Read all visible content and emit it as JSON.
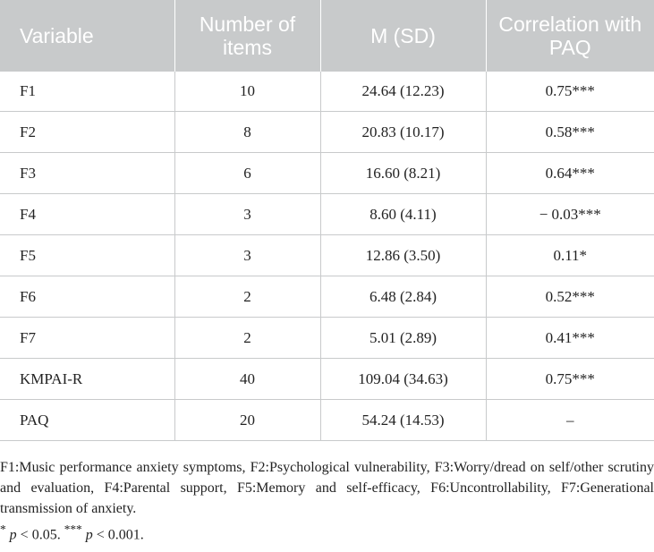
{
  "table": {
    "headers": [
      "Variable",
      "Number of items",
      "M (SD)",
      "Correlation with PAQ"
    ],
    "rows": [
      {
        "variable": "F1",
        "items": "10",
        "msd": "24.64 (12.23)",
        "corr": "0.75***"
      },
      {
        "variable": "F2",
        "items": "8",
        "msd": "20.83 (10.17)",
        "corr": "0.58***"
      },
      {
        "variable": "F3",
        "items": "6",
        "msd": "16.60 (8.21)",
        "corr": "0.64***"
      },
      {
        "variable": "F4",
        "items": "3",
        "msd": "8.60 (4.11)",
        "corr": "− 0.03***"
      },
      {
        "variable": "F5",
        "items": "3",
        "msd": "12.86 (3.50)",
        "corr": "0.11*"
      },
      {
        "variable": "F6",
        "items": "2",
        "msd": "6.48 (2.84)",
        "corr": "0.52***"
      },
      {
        "variable": "F7",
        "items": "2",
        "msd": "5.01 (2.89)",
        "corr": "0.41***"
      },
      {
        "variable": "KMPAI-R",
        "items": "40",
        "msd": "109.04 (34.63)",
        "corr": "0.75***"
      },
      {
        "variable": "PAQ",
        "items": "20",
        "msd": "54.24 (14.53)",
        "corr": "–"
      }
    ]
  },
  "notes": {
    "abbreviations": "F1:Music performance anxiety symptoms, F2:Psychological vulnerability, F3:Worry/dread on self/other scrutiny and evaluation, F4:Parental support, F5:Memory and self-efficacy, F6:Uncontrollability, F7:Generational transmission of anxiety.",
    "sig1_star": "*",
    "sig1_p": "p",
    "sig1_rest": " < 0.05. ",
    "sig2_star": "***",
    "sig2_p": "p",
    "sig2_rest": " < 0.001."
  },
  "colors": {
    "header_bg": "#c8cacb",
    "header_text": "#ffffff",
    "border": "#c8cacb"
  }
}
